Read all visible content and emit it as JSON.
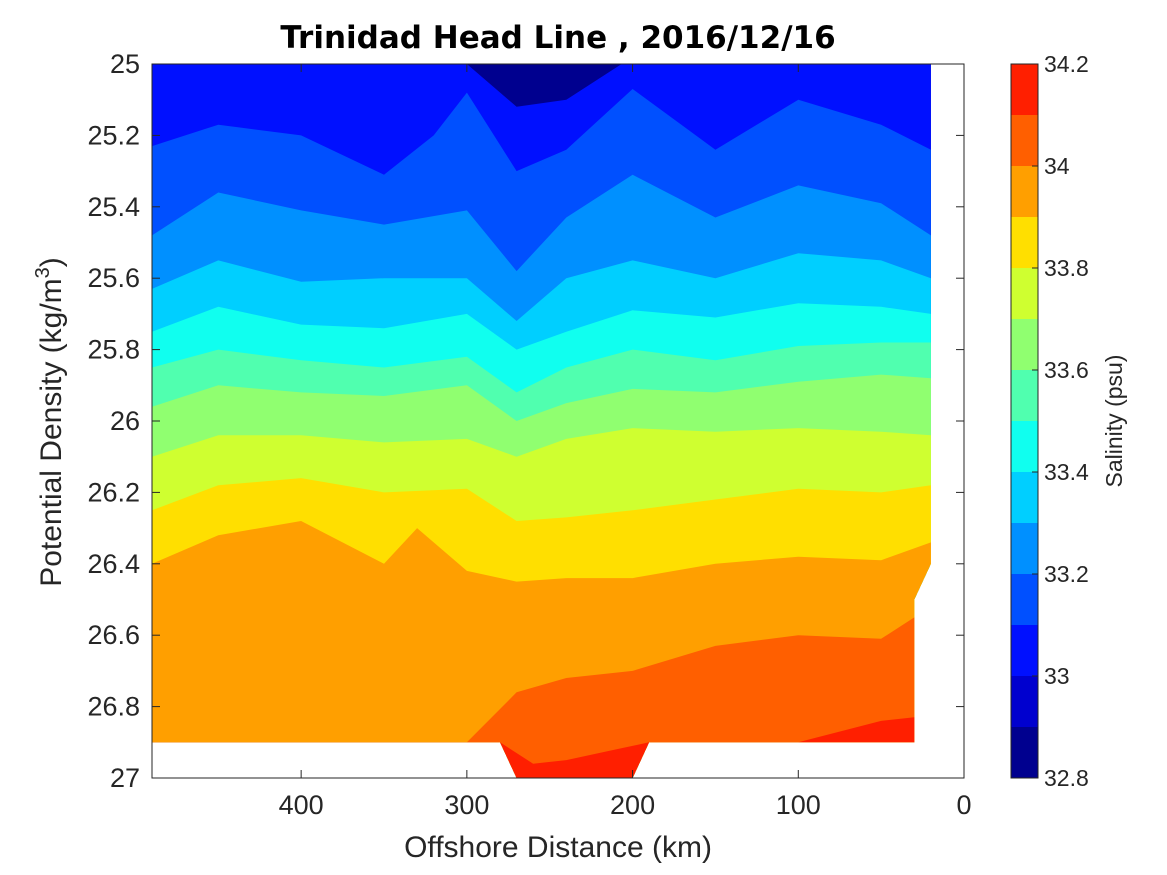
{
  "chart_data": {
    "type": "contour",
    "title": "Trinidad Head Line , 2016/12/16",
    "xlabel": "Offshore Distance (km)",
    "ylabel_main": "Potential Density (kg/m",
    "ylabel_sup": "3",
    "ylabel_close": ")",
    "colorbar_label": "Salinity (psu)",
    "x_reversed": true,
    "y_reversed": true,
    "xlim": [
      0,
      490
    ],
    "ylim": [
      25,
      27
    ],
    "x_ticks": [
      400,
      300,
      200,
      100,
      0
    ],
    "y_ticks": [
      25,
      25.2,
      25.4,
      25.6,
      25.8,
      26,
      26.2,
      26.4,
      26.6,
      26.8,
      27
    ],
    "colorbar_ticks": [
      34.2,
      34,
      33.8,
      33.6,
      33.4,
      33.2,
      33,
      32.8
    ],
    "colorbar_range": [
      32.8,
      34.2
    ],
    "contour_levels": [
      32.8,
      32.9,
      33.0,
      33.1,
      33.2,
      33.3,
      33.4,
      33.5,
      33.6,
      33.7,
      33.8,
      33.9,
      34.0,
      34.1,
      34.2
    ],
    "level_colors": [
      "#00008f",
      "#0000cf",
      "#0010ff",
      "#0050ff",
      "#0090ff",
      "#00cfff",
      "#10ffef",
      "#50ffaf",
      "#90ff70",
      "#cfff30",
      "#ffdf00",
      "#ff9f00",
      "#ff5f00",
      "#ff1f00",
      "#cf0000"
    ],
    "data_x_extent_km": [
      20,
      490
    ],
    "data_y_extent": [
      25,
      26.9
    ],
    "salinity_contours": [
      {
        "level": 33.0,
        "x": [
          490,
          450,
          400,
          350,
          300,
          270,
          240,
          200,
          150,
          100,
          50,
          20
        ],
        "y": [
          24.98,
          24.99,
          25.0,
          24.99,
          25.0,
          25.12,
          25.1,
          24.98,
          24.99,
          24.99,
          24.99,
          24.98
        ]
      },
      {
        "level": 33.1,
        "x": [
          490,
          450,
          400,
          350,
          320,
          300,
          270,
          240,
          200,
          150,
          100,
          50,
          20
        ],
        "y": [
          25.23,
          25.17,
          25.2,
          25.31,
          25.2,
          25.08,
          25.3,
          25.24,
          25.07,
          25.24,
          25.1,
          25.17,
          25.24
        ]
      },
      {
        "level": 33.2,
        "x": [
          490,
          450,
          400,
          350,
          300,
          270,
          240,
          200,
          150,
          100,
          50,
          20
        ],
        "y": [
          25.48,
          25.36,
          25.41,
          25.45,
          25.41,
          25.58,
          25.43,
          25.31,
          25.43,
          25.34,
          25.39,
          25.48
        ]
      },
      {
        "level": 33.3,
        "x": [
          490,
          450,
          400,
          350,
          300,
          270,
          240,
          200,
          150,
          100,
          50,
          20
        ],
        "y": [
          25.63,
          25.55,
          25.61,
          25.6,
          25.6,
          25.72,
          25.6,
          25.55,
          25.6,
          25.53,
          25.55,
          25.6
        ]
      },
      {
        "level": 33.4,
        "x": [
          490,
          450,
          400,
          350,
          300,
          270,
          240,
          200,
          150,
          100,
          50,
          20
        ],
        "y": [
          25.75,
          25.68,
          25.73,
          25.74,
          25.7,
          25.8,
          25.75,
          25.69,
          25.71,
          25.67,
          25.68,
          25.7
        ]
      },
      {
        "level": 33.5,
        "x": [
          490,
          450,
          400,
          350,
          300,
          270,
          240,
          200,
          150,
          100,
          50,
          20
        ],
        "y": [
          25.85,
          25.8,
          25.83,
          25.85,
          25.82,
          25.92,
          25.85,
          25.8,
          25.83,
          25.79,
          25.78,
          25.78
        ]
      },
      {
        "level": 33.6,
        "x": [
          490,
          450,
          400,
          350,
          300,
          270,
          240,
          200,
          150,
          100,
          50,
          20
        ],
        "y": [
          25.96,
          25.9,
          25.92,
          25.93,
          25.9,
          26.0,
          25.95,
          25.91,
          25.92,
          25.89,
          25.87,
          25.88
        ]
      },
      {
        "level": 33.7,
        "x": [
          490,
          450,
          400,
          350,
          300,
          270,
          240,
          200,
          150,
          100,
          50,
          20
        ],
        "y": [
          26.1,
          26.04,
          26.04,
          26.06,
          26.05,
          26.1,
          26.05,
          26.02,
          26.03,
          26.02,
          26.03,
          26.04
        ]
      },
      {
        "level": 33.8,
        "x": [
          490,
          450,
          400,
          350,
          300,
          270,
          240,
          200,
          150,
          100,
          50,
          20
        ],
        "y": [
          26.25,
          26.18,
          26.16,
          26.2,
          26.19,
          26.28,
          26.27,
          26.25,
          26.22,
          26.19,
          26.2,
          26.18
        ]
      },
      {
        "level": 33.9,
        "x": [
          490,
          450,
          400,
          350,
          330,
          300,
          270,
          240,
          200,
          150,
          100,
          50,
          20
        ],
        "y": [
          26.4,
          26.32,
          26.28,
          26.4,
          26.3,
          26.42,
          26.45,
          26.44,
          26.44,
          26.4,
          26.38,
          26.39,
          26.34
        ]
      },
      {
        "level": 34.0,
        "x": [
          490,
          450,
          400,
          350,
          300,
          270,
          240,
          200,
          150,
          100,
          50,
          30
        ],
        "y": [
          26.9,
          26.9,
          26.9,
          26.9,
          26.9,
          26.76,
          26.72,
          26.7,
          26.63,
          26.6,
          26.61,
          26.55
        ]
      },
      {
        "level": 34.1,
        "x": [
          280,
          260,
          240,
          210,
          190,
          150,
          100,
          50,
          30
        ],
        "y": [
          26.9,
          26.96,
          26.95,
          26.92,
          26.9,
          26.9,
          26.9,
          26.84,
          26.83
        ]
      }
    ]
  }
}
